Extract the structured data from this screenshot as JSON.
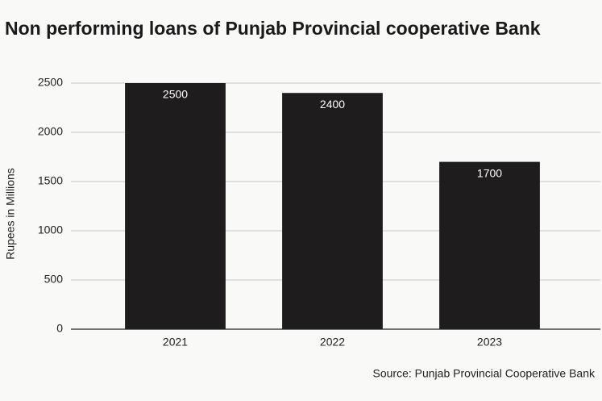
{
  "chart_data": {
    "type": "bar",
    "title": "Non performing loans of Punjab Provincial cooperative Bank",
    "y_label": "Rupees in Millions",
    "source": "Source: Punjab Provincial Cooperative Bank",
    "categories": [
      "2021",
      "2022",
      "2023"
    ],
    "values": [
      2500,
      2400,
      1700
    ],
    "color": "#1f1c1d",
    "ylim": [
      0,
      2500
    ],
    "yticks": [
      0,
      500,
      1000,
      1500,
      2000,
      2500
    ],
    "grid": true
  }
}
